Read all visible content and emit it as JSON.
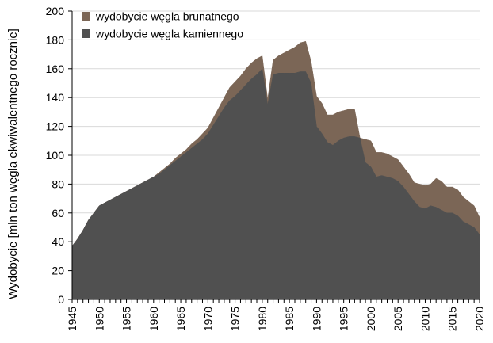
{
  "chart_data": {
    "type": "area",
    "stacked": true,
    "title": "",
    "xlabel": "",
    "ylabel": "Wydobycie [mln ton węgla ekwiwalentnego rocznie]",
    "ylim": [
      0,
      200
    ],
    "xlim": [
      1945,
      2020
    ],
    "y_ticks": [
      0,
      20,
      40,
      60,
      80,
      100,
      120,
      140,
      160,
      180,
      200
    ],
    "x_ticks": [
      1945,
      1950,
      1955,
      1960,
      1965,
      1970,
      1975,
      1980,
      1985,
      1990,
      1995,
      2000,
      2005,
      2010,
      2015,
      2020
    ],
    "grid": true,
    "legend_position": "top-left",
    "x": [
      1945,
      1946,
      1947,
      1948,
      1949,
      1950,
      1951,
      1952,
      1953,
      1954,
      1955,
      1956,
      1957,
      1958,
      1959,
      1960,
      1961,
      1962,
      1963,
      1964,
      1965,
      1966,
      1967,
      1968,
      1969,
      1970,
      1971,
      1972,
      1973,
      1974,
      1975,
      1976,
      1977,
      1978,
      1979,
      1980,
      1981,
      1982,
      1983,
      1984,
      1985,
      1986,
      1987,
      1988,
      1989,
      1990,
      1991,
      1992,
      1993,
      1994,
      1995,
      1996,
      1997,
      1998,
      1999,
      2000,
      2001,
      2002,
      2003,
      2004,
      2005,
      2006,
      2007,
      2008,
      2009,
      2010,
      2011,
      2012,
      2013,
      2014,
      2015,
      2016,
      2017,
      2018,
      2019,
      2020
    ],
    "series": [
      {
        "name": "wydobycie węgla kamiennego",
        "color": "#505050",
        "values": [
          37,
          42,
          48,
          55,
          60,
          65,
          67,
          69,
          71,
          73,
          75,
          77,
          79,
          81,
          83,
          85,
          87,
          90,
          93,
          96,
          99,
          102,
          105,
          108,
          111,
          115,
          121,
          127,
          133,
          138,
          141,
          145,
          149,
          153,
          156,
          160,
          135,
          156,
          157,
          157,
          157,
          157,
          158,
          158,
          150,
          120,
          115,
          109,
          107,
          110,
          112,
          113,
          113,
          112,
          95,
          92,
          85,
          86,
          85,
          84,
          82,
          78,
          73,
          68,
          64,
          63,
          65,
          64,
          62,
          60,
          60,
          58,
          54,
          52,
          50,
          45
        ],
        "fill_top": [
          37,
          42,
          48,
          55,
          60,
          65,
          67,
          69,
          71,
          73,
          75,
          77,
          79,
          81,
          83,
          85,
          87,
          90,
          93,
          96,
          99,
          102,
          105,
          108,
          111,
          115,
          121,
          127,
          133,
          138,
          141,
          145,
          149,
          153,
          156,
          160,
          135,
          156,
          157,
          157,
          157,
          157,
          158,
          158,
          150,
          120,
          115,
          109,
          107,
          110,
          112,
          113,
          113,
          112,
          95,
          92,
          85,
          86,
          85,
          84,
          82,
          78,
          73,
          68,
          64,
          63,
          65,
          64,
          62,
          60,
          60,
          58,
          54,
          52,
          50,
          45
        ]
      },
      {
        "name": "wydobycie węgla brunatnego",
        "color": "#7b6656",
        "values": [
          0,
          0,
          0,
          0,
          0,
          0,
          0,
          0,
          0,
          0,
          0,
          0,
          0,
          0,
          0,
          0,
          1,
          1,
          1,
          2,
          2,
          2,
          3,
          3,
          4,
          4,
          5,
          6,
          7,
          9,
          10,
          10,
          11,
          11,
          11,
          9,
          4,
          10,
          12,
          14,
          16,
          18,
          20,
          21,
          15,
          21,
          21,
          19,
          21,
          20,
          19,
          19,
          19,
          0,
          16,
          18,
          17,
          16,
          16,
          15,
          15,
          14,
          14,
          13,
          16,
          16,
          15,
          20,
          20,
          18,
          18,
          18,
          17,
          16,
          15,
          12
        ],
        "fill_top": [
          37,
          42,
          48,
          55,
          60,
          65,
          67,
          69,
          71,
          73,
          75,
          77,
          79,
          81,
          83,
          85,
          88,
          91,
          94,
          98,
          101,
          104,
          108,
          111,
          115,
          119,
          126,
          133,
          140,
          147,
          151,
          155,
          160,
          164,
          167,
          169,
          139,
          166,
          169,
          171,
          173,
          175,
          178,
          179,
          165,
          141,
          136,
          128,
          128,
          130,
          131,
          132,
          132,
          112,
          111,
          110,
          102,
          102,
          101,
          99,
          97,
          92,
          87,
          81,
          80,
          79,
          80,
          84,
          82,
          78,
          78,
          76,
          71,
          68,
          65,
          57
        ]
      }
    ]
  },
  "colors": {
    "background": "#ffffff",
    "grid": "#d9d9d9",
    "axis": "#000000"
  }
}
